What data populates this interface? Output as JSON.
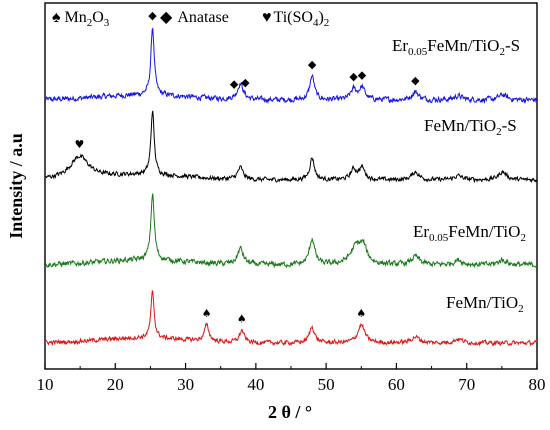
{
  "chart_data": {
    "type": "line",
    "xlabel": "2 θ / °",
    "ylabel": "Intensity / a.u",
    "xlim": [
      10,
      80
    ],
    "xticks": [
      10,
      20,
      30,
      40,
      50,
      60,
      70,
      80
    ],
    "legend": [
      {
        "symbol": "♠",
        "name": "Mn",
        "sub1": "2",
        "name2": "O",
        "sub2": "3",
        "name3": ""
      },
      {
        "symbol": "◆",
        "name": "Anatase",
        "sub1": "",
        "name2": "",
        "sub2": "",
        "name3": ""
      },
      {
        "symbol": "♥",
        "name": "Ti(SO",
        "sub1": "4",
        "name2": ")",
        "sub2": "2",
        "name3": ""
      }
    ],
    "series": [
      {
        "label_parts": [
          "Er",
          "0.05",
          "FeMn/TiO",
          "2",
          "-S"
        ],
        "color": "#1414e6",
        "noise": 5,
        "baseline_scale": 1.0,
        "peaks": [
          [
            25.3,
            68,
            0.28
          ],
          [
            37.8,
            16,
            0.5
          ],
          [
            48.0,
            24,
            0.4
          ],
          [
            53.9,
            10,
            0.5
          ],
          [
            55.1,
            12,
            0.5
          ],
          [
            62.7,
            8,
            0.6
          ],
          [
            68.8,
            4,
            0.7
          ],
          [
            75.1,
            5,
            0.7
          ]
        ],
        "markers": [
          [
            25.3,
            "◆"
          ],
          [
            36.9,
            "◆"
          ],
          [
            38.5,
            "◆"
          ],
          [
            48.0,
            "◆"
          ],
          [
            53.9,
            "◆"
          ],
          [
            55.1,
            "◆"
          ],
          [
            62.7,
            "◆"
          ]
        ]
      },
      {
        "label_parts": [
          "FeMn/TiO",
          "2",
          "-S"
        ],
        "color": "#000000",
        "noise": 4,
        "baseline_scale": 1.0,
        "peaks": [
          [
            14.9,
            22,
            1.6
          ],
          [
            25.3,
            64,
            0.28
          ],
          [
            37.8,
            12,
            0.45
          ],
          [
            48.0,
            22,
            0.4
          ],
          [
            53.9,
            10,
            0.5
          ],
          [
            55.1,
            12,
            0.5
          ],
          [
            62.7,
            8,
            0.6
          ],
          [
            68.8,
            4,
            0.7
          ],
          [
            75.1,
            8,
            0.7
          ]
        ],
        "markers": [
          [
            14.9,
            "♥"
          ]
        ]
      },
      {
        "label_parts": [
          "Er",
          "0.05",
          "FeMn/TiO",
          "2",
          ""
        ],
        "color": "#1a7a1a",
        "noise": 5,
        "baseline_scale": 1.0,
        "peaks": [
          [
            25.3,
            66,
            0.3
          ],
          [
            37.8,
            16,
            0.5
          ],
          [
            48.0,
            26,
            0.45
          ],
          [
            54.3,
            18,
            1.0
          ],
          [
            55.3,
            14,
            0.6
          ],
          [
            62.7,
            8,
            0.7
          ],
          [
            68.8,
            5,
            0.7
          ],
          [
            75.1,
            5,
            0.7
          ]
        ],
        "markers": []
      },
      {
        "label_parts": [
          "FeMn/TiO",
          "2",
          ""
        ],
        "color": "#e01414",
        "noise": 4,
        "baseline_scale": 1.0,
        "peaks": [
          [
            25.3,
            46,
            0.28
          ],
          [
            33.0,
            16,
            0.4
          ],
          [
            38.0,
            12,
            0.4
          ],
          [
            48.0,
            16,
            0.45
          ],
          [
            55.0,
            18,
            0.6
          ],
          [
            62.7,
            6,
            0.7
          ],
          [
            68.8,
            4,
            0.7
          ]
        ],
        "markers": [
          [
            33.0,
            "♠"
          ],
          [
            38.0,
            "♠"
          ],
          [
            55.0,
            "♠"
          ]
        ]
      }
    ]
  }
}
